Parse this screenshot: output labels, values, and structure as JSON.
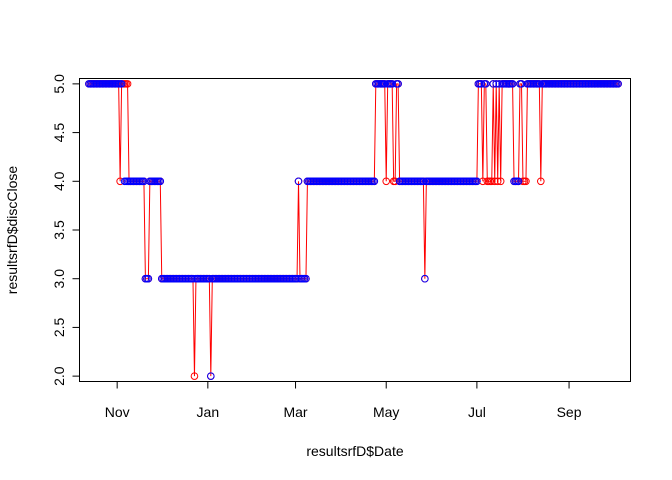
{
  "chart_data": {
    "type": "scatter",
    "title": "",
    "xlabel": "resultsrfD$Date",
    "ylabel": "resultsrfD$discClose",
    "xlim": [
      "2014-10-07",
      "2015-10-12"
    ],
    "ylim": [
      1.95,
      5.05
    ],
    "x_ticks": [
      {
        "label": "Nov",
        "date": "2014-11-01"
      },
      {
        "label": "Jan",
        "date": "2015-01-01"
      },
      {
        "label": "Mar",
        "date": "2015-03-01"
      },
      {
        "label": "May",
        "date": "2015-05-01"
      },
      {
        "label": "Jul",
        "date": "2015-07-01"
      },
      {
        "label": "Sep",
        "date": "2015-09-01"
      }
    ],
    "y_ticks": [
      "2.0",
      "2.5",
      "3.0",
      "3.5",
      "4.0",
      "4.5",
      "5.0"
    ],
    "grid": false,
    "colors": {
      "red": "#ff0000",
      "blue": "#0000ff"
    },
    "series": [
      {
        "color": "red",
        "style": "line+points",
        "segments": [
          {
            "start": "2014-10-13",
            "end": "2014-11-02",
            "value": 5
          },
          {
            "start": "2014-11-03",
            "end": "2014-11-03",
            "value": 4
          },
          {
            "start": "2014-11-04",
            "end": "2014-11-08",
            "value": 5
          },
          {
            "start": "2014-11-09",
            "end": "2014-11-19",
            "value": 4
          },
          {
            "start": "2014-11-20",
            "end": "2014-11-22",
            "value": 3
          },
          {
            "start": "2014-11-23",
            "end": "2014-11-30",
            "value": 4
          },
          {
            "start": "2014-12-01",
            "end": "2014-12-22",
            "value": 3
          },
          {
            "start": "2014-12-23",
            "end": "2014-12-23",
            "value": 2
          },
          {
            "start": "2014-12-24",
            "end": "2015-01-02",
            "value": 3
          },
          {
            "start": "2015-01-03",
            "end": "2015-01-03",
            "value": 2
          },
          {
            "start": "2015-01-04",
            "end": "2015-03-02",
            "value": 3
          },
          {
            "start": "2015-03-03",
            "end": "2015-03-03",
            "value": 4
          },
          {
            "start": "2015-03-04",
            "end": "2015-03-08",
            "value": 3
          },
          {
            "start": "2015-03-09",
            "end": "2015-04-23",
            "value": 4
          },
          {
            "start": "2015-04-24",
            "end": "2015-04-30",
            "value": 5
          },
          {
            "start": "2015-05-01",
            "end": "2015-05-01",
            "value": 4
          },
          {
            "start": "2015-05-02",
            "end": "2015-05-05",
            "value": 5
          },
          {
            "start": "2015-05-06",
            "end": "2015-05-07",
            "value": 4
          },
          {
            "start": "2015-05-08",
            "end": "2015-05-09",
            "value": 5
          },
          {
            "start": "2015-05-10",
            "end": "2015-05-26",
            "value": 4
          },
          {
            "start": "2015-05-27",
            "end": "2015-05-27",
            "value": 3
          },
          {
            "start": "2015-05-28",
            "end": "2015-07-01",
            "value": 4
          },
          {
            "start": "2015-07-02",
            "end": "2015-07-04",
            "value": 5
          },
          {
            "start": "2015-07-05",
            "end": "2015-07-05",
            "value": 4
          },
          {
            "start": "2015-07-06",
            "end": "2015-07-07",
            "value": 5
          },
          {
            "start": "2015-07-08",
            "end": "2015-07-11",
            "value": 4
          },
          {
            "start": "2015-07-12",
            "end": "2015-07-12",
            "value": 5
          },
          {
            "start": "2015-07-13",
            "end": "2015-07-13",
            "value": 4
          },
          {
            "start": "2015-07-14",
            "end": "2015-07-14",
            "value": 5
          },
          {
            "start": "2015-07-15",
            "end": "2015-07-15",
            "value": 4
          },
          {
            "start": "2015-07-16",
            "end": "2015-07-16",
            "value": 5
          },
          {
            "start": "2015-07-17",
            "end": "2015-07-17",
            "value": 4
          },
          {
            "start": "2015-07-18",
            "end": "2015-07-25",
            "value": 5
          },
          {
            "start": "2015-07-26",
            "end": "2015-07-29",
            "value": 4
          },
          {
            "start": "2015-07-30",
            "end": "2015-07-31",
            "value": 5
          },
          {
            "start": "2015-08-01",
            "end": "2015-08-03",
            "value": 4
          },
          {
            "start": "2015-08-04",
            "end": "2015-08-12",
            "value": 5
          },
          {
            "start": "2015-08-13",
            "end": "2015-08-13",
            "value": 4
          },
          {
            "start": "2015-08-14",
            "end": "2015-10-04",
            "value": 5
          }
        ]
      },
      {
        "color": "blue",
        "style": "points",
        "segments": [
          {
            "start": "2014-10-13",
            "end": "2014-11-04",
            "value": 5
          },
          {
            "start": "2014-11-06",
            "end": "2014-11-19",
            "value": 4
          },
          {
            "start": "2014-11-20",
            "end": "2014-11-22",
            "value": 3
          },
          {
            "start": "2014-11-23",
            "end": "2014-11-30",
            "value": 4
          },
          {
            "start": "2014-12-01",
            "end": "2014-12-22",
            "value": 3
          },
          {
            "start": "2014-12-24",
            "end": "2015-01-02",
            "value": 3
          },
          {
            "start": "2015-01-03",
            "end": "2015-01-03",
            "value": 2
          },
          {
            "start": "2015-01-04",
            "end": "2015-03-02",
            "value": 3
          },
          {
            "start": "2015-03-03",
            "end": "2015-03-03",
            "value": 4
          },
          {
            "start": "2015-03-04",
            "end": "2015-03-08",
            "value": 3
          },
          {
            "start": "2015-03-09",
            "end": "2015-04-23",
            "value": 4
          },
          {
            "start": "2015-04-24",
            "end": "2015-04-30",
            "value": 5
          },
          {
            "start": "2015-05-02",
            "end": "2015-05-05",
            "value": 5
          },
          {
            "start": "2015-05-08",
            "end": "2015-05-09",
            "value": 5
          },
          {
            "start": "2015-05-10",
            "end": "2015-05-26",
            "value": 4
          },
          {
            "start": "2015-05-27",
            "end": "2015-05-27",
            "value": 3
          },
          {
            "start": "2015-05-28",
            "end": "2015-07-01",
            "value": 4
          },
          {
            "start": "2015-07-02",
            "end": "2015-07-04",
            "value": 5
          },
          {
            "start": "2015-07-06",
            "end": "2015-07-07",
            "value": 5
          },
          {
            "start": "2015-07-12",
            "end": "2015-07-12",
            "value": 5
          },
          {
            "start": "2015-07-14",
            "end": "2015-07-14",
            "value": 5
          },
          {
            "start": "2015-07-16",
            "end": "2015-07-16",
            "value": 5
          },
          {
            "start": "2015-07-18",
            "end": "2015-07-25",
            "value": 5
          },
          {
            "start": "2015-07-26",
            "end": "2015-07-29",
            "value": 4
          },
          {
            "start": "2015-07-30",
            "end": "2015-07-31",
            "value": 5
          },
          {
            "start": "2015-08-04",
            "end": "2015-08-12",
            "value": 5
          },
          {
            "start": "2015-08-14",
            "end": "2015-10-04",
            "value": 5
          }
        ]
      }
    ]
  }
}
